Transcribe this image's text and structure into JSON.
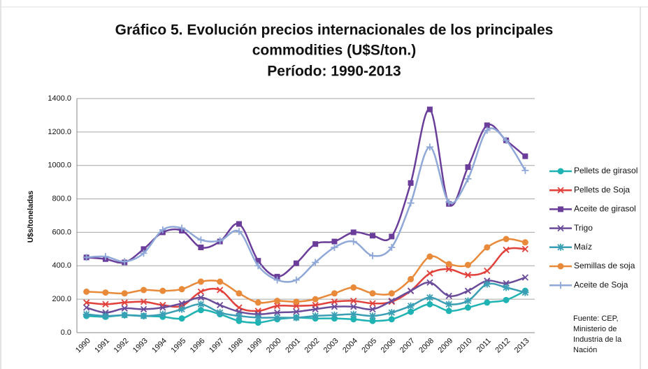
{
  "chart_data": {
    "type": "line",
    "title": [
      "Gráfico 5. Evolución precios internacionales de los principales",
      "commodities (U$S/ton.)",
      "Período: 1990-2013"
    ],
    "y_label": "U$s/toneladas",
    "source": [
      "Fuente: CEP,",
      "Ministerio de",
      "Industria de la",
      "Nación"
    ],
    "categories": [
      "1990",
      "1991",
      "1992",
      "1993",
      "1994",
      "1995",
      "1996",
      "1997",
      "1998",
      "1999",
      "2000",
      "2001",
      "2002",
      "2003",
      "2004",
      "2005",
      "2006",
      "2007",
      "2008",
      "2009",
      "2010",
      "2011",
      "2012",
      "2013"
    ],
    "ylim": [
      0,
      1400
    ],
    "yticks": [
      {
        "value": 0,
        "label": "0.0"
      },
      {
        "value": 200,
        "label": "200.0"
      },
      {
        "value": 400,
        "label": "400.0"
      },
      {
        "value": 600,
        "label": "600.0"
      },
      {
        "value": 800,
        "label": "800.0"
      },
      {
        "value": 1000,
        "label": "1000.0"
      },
      {
        "value": 1200,
        "label": "1200.0"
      },
      {
        "value": 1400,
        "label": "1400.0"
      }
    ],
    "grid": true,
    "legend": "right",
    "series": [
      {
        "name": "Pellets de girasol",
        "color": "#1fb3b3",
        "marker": "circle",
        "values": [
          100,
          95,
          105,
          100,
          95,
          85,
          135,
          110,
          70,
          60,
          80,
          90,
          85,
          85,
          80,
          70,
          80,
          125,
          170,
          130,
          150,
          180,
          195,
          250
        ]
      },
      {
        "name": "Pellets de Soja",
        "color": "#e2403a",
        "marker": "x",
        "values": [
          180,
          170,
          180,
          185,
          165,
          160,
          245,
          255,
          150,
          130,
          160,
          160,
          165,
          185,
          190,
          175,
          185,
          250,
          355,
          380,
          345,
          370,
          495,
          500
        ]
      },
      {
        "name": "Aceite de girasol",
        "color": "#6a3d9a",
        "marker": "square",
        "values": [
          450,
          440,
          420,
          500,
          600,
          610,
          510,
          545,
          650,
          430,
          335,
          415,
          530,
          545,
          600,
          580,
          575,
          895,
          1335,
          770,
          990,
          1240,
          1150,
          1055
        ]
      },
      {
        "name": "Trigo",
        "color": "#6b4c9a",
        "marker": "x",
        "values": [
          150,
          120,
          145,
          140,
          150,
          175,
          210,
          165,
          125,
          110,
          120,
          125,
          140,
          155,
          155,
          140,
          190,
          250,
          300,
          220,
          250,
          310,
          295,
          330
        ]
      },
      {
        "name": "Maíz",
        "color": "#3a9fb5",
        "marker": "asterisk",
        "values": [
          110,
          100,
          105,
          100,
          110,
          140,
          170,
          120,
          100,
          90,
          90,
          90,
          100,
          105,
          110,
          100,
          120,
          160,
          210,
          170,
          190,
          290,
          270,
          240
        ]
      },
      {
        "name": "Semillas de soja",
        "color": "#e88a3a",
        "marker": "circle",
        "values": [
          245,
          240,
          235,
          255,
          250,
          260,
          305,
          305,
          235,
          180,
          190,
          185,
          200,
          235,
          270,
          235,
          235,
          320,
          455,
          410,
          405,
          510,
          560,
          540
        ]
      },
      {
        "name": "Aceite de Soja",
        "color": "#8fa8d8",
        "marker": "plus",
        "values": [
          450,
          455,
          425,
          475,
          615,
          625,
          555,
          550,
          605,
          400,
          315,
          315,
          420,
          510,
          545,
          460,
          510,
          775,
          1110,
          780,
          920,
          1210,
          1150,
          970
        ]
      }
    ]
  }
}
